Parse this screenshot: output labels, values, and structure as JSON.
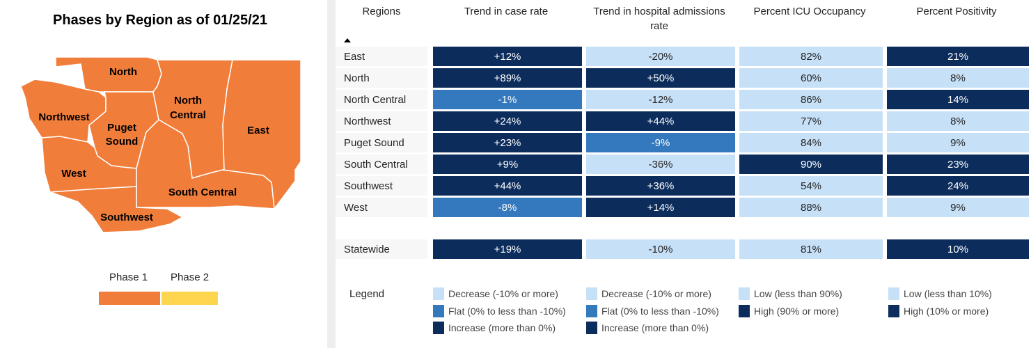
{
  "map": {
    "title": "Phases by Region as of 01/25/21",
    "phase_color": "#f07d3a",
    "regions": [
      {
        "name": "North",
        "label_lines": [
          "North"
        ]
      },
      {
        "name": "Northwest",
        "label_lines": [
          "Northwest"
        ]
      },
      {
        "name": "Puget Sound",
        "label_lines": [
          "Puget",
          "Sound"
        ]
      },
      {
        "name": "North Central",
        "label_lines": [
          "North",
          "Central"
        ]
      },
      {
        "name": "East",
        "label_lines": [
          "East"
        ]
      },
      {
        "name": "West",
        "label_lines": [
          "West"
        ]
      },
      {
        "name": "South Central",
        "label_lines": [
          "South Central"
        ]
      },
      {
        "name": "Southwest",
        "label_lines": [
          "Southwest"
        ]
      }
    ],
    "phase_legend": [
      {
        "label": "Phase 1",
        "color": "#f07d3a"
      },
      {
        "label": "Phase 2",
        "color": "#fdd54f"
      }
    ]
  },
  "table": {
    "headers": [
      "Regions",
      "Trend in case rate",
      "Trend in hospital admissions rate",
      "Percent ICU Occupancy",
      "Percent Positivity"
    ],
    "sort": "ascending",
    "colors": {
      "light": "#c6e0f7",
      "mid": "#3479be",
      "dark": "#0c2d5c"
    },
    "rows": [
      {
        "region": "East",
        "cells": [
          {
            "v": "+12%",
            "c": "dark"
          },
          {
            "v": "-20%",
            "c": "light"
          },
          {
            "v": "82%",
            "c": "light"
          },
          {
            "v": "21%",
            "c": "dark"
          }
        ]
      },
      {
        "region": "North",
        "cells": [
          {
            "v": "+89%",
            "c": "dark"
          },
          {
            "v": "+50%",
            "c": "dark"
          },
          {
            "v": "60%",
            "c": "light"
          },
          {
            "v": "8%",
            "c": "light"
          }
        ]
      },
      {
        "region": "North Central",
        "cells": [
          {
            "v": "-1%",
            "c": "mid"
          },
          {
            "v": "-12%",
            "c": "light"
          },
          {
            "v": "86%",
            "c": "light"
          },
          {
            "v": "14%",
            "c": "dark"
          }
        ]
      },
      {
        "region": "Northwest",
        "cells": [
          {
            "v": "+24%",
            "c": "dark"
          },
          {
            "v": "+44%",
            "c": "dark"
          },
          {
            "v": "77%",
            "c": "light"
          },
          {
            "v": "8%",
            "c": "light"
          }
        ]
      },
      {
        "region": "Puget Sound",
        "cells": [
          {
            "v": "+23%",
            "c": "dark"
          },
          {
            "v": "-9%",
            "c": "mid"
          },
          {
            "v": "84%",
            "c": "light"
          },
          {
            "v": "9%",
            "c": "light"
          }
        ]
      },
      {
        "region": "South Central",
        "cells": [
          {
            "v": "+9%",
            "c": "dark"
          },
          {
            "v": "-36%",
            "c": "light"
          },
          {
            "v": "90%",
            "c": "dark"
          },
          {
            "v": "23%",
            "c": "dark"
          }
        ]
      },
      {
        "region": "Southwest",
        "cells": [
          {
            "v": "+44%",
            "c": "dark"
          },
          {
            "v": "+36%",
            "c": "dark"
          },
          {
            "v": "54%",
            "c": "light"
          },
          {
            "v": "24%",
            "c": "dark"
          }
        ]
      },
      {
        "region": "West",
        "cells": [
          {
            "v": "-8%",
            "c": "mid"
          },
          {
            "v": "+14%",
            "c": "dark"
          },
          {
            "v": "88%",
            "c": "light"
          },
          {
            "v": "9%",
            "c": "light"
          }
        ]
      }
    ],
    "statewide": {
      "region": "Statewide",
      "cells": [
        {
          "v": "+19%",
          "c": "dark"
        },
        {
          "v": "-10%",
          "c": "light"
        },
        {
          "v": "81%",
          "c": "light"
        },
        {
          "v": "10%",
          "c": "dark"
        }
      ]
    }
  },
  "legend": {
    "title": "Legend",
    "columns": [
      [
        {
          "label": "Decrease (-10% or more)",
          "c": "light"
        },
        {
          "label": "Flat (0% to less than -10%)",
          "c": "mid"
        },
        {
          "label": "Increase (more than 0%)",
          "c": "dark"
        }
      ],
      [
        {
          "label": "Decrease (-10% or more)",
          "c": "light"
        },
        {
          "label": "Flat (0% to less than -10%)",
          "c": "mid"
        },
        {
          "label": "Increase (more than 0%)",
          "c": "dark"
        }
      ],
      [
        {
          "label": "Low (less than 90%)",
          "c": "light"
        },
        {
          "label": "High (90% or more)",
          "c": "dark"
        }
      ],
      [
        {
          "label": "Low (less than 10%)",
          "c": "light"
        },
        {
          "label": "High (10% or more)",
          "c": "dark"
        }
      ]
    ]
  }
}
